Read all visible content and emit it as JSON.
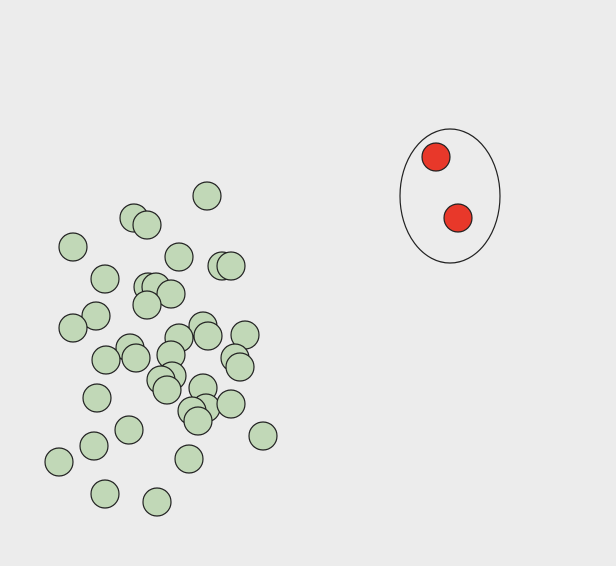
{
  "colors": {
    "background": "#ececec",
    "green_dot_fill": "#c1d8b7",
    "red_dot_fill": "#e8382a",
    "stroke": "#222222",
    "enclosure_fill": "none"
  },
  "green_dot_count": 50,
  "red_dot_count": 2,
  "enclosure_shape": "ellipse"
}
